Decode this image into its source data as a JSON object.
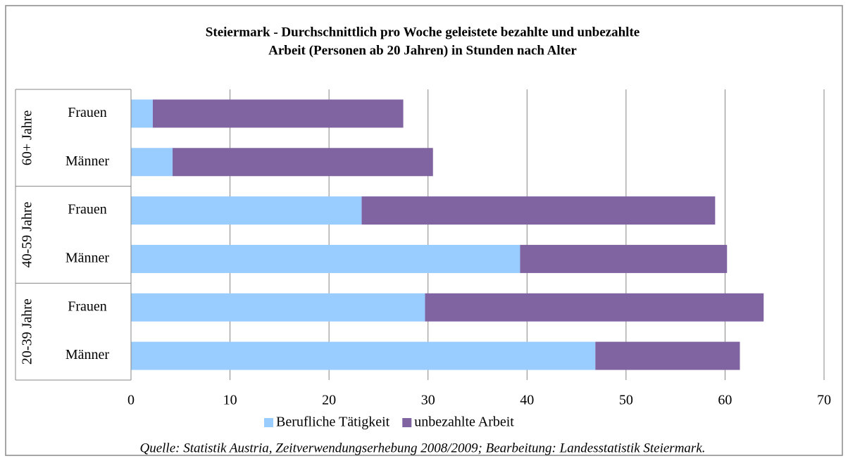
{
  "chart_data": {
    "type": "stacked_barh",
    "title": [
      "Steiermark - Durchschnittlich pro Woche geleistete bezahlte und unbezahlte",
      "Arbeit (Personen ab 20 Jahren) in Stunden nach Alter"
    ],
    "groups": [
      "60+ Jahre",
      "40-59 Jahre",
      "20-39 Jahre"
    ],
    "categories": [
      "Frauen",
      "Männer",
      "Frauen",
      "Männer",
      "Frauen",
      "Männer"
    ],
    "series": [
      {
        "name": "Berufliche Tätigkeit",
        "color": "#99ccff",
        "values": [
          2.2,
          4.2,
          23.3,
          39.3,
          29.7,
          46.9
        ]
      },
      {
        "name": "unbezahlte Arbeit",
        "color": "#8064a2",
        "values": [
          25.3,
          26.3,
          35.7,
          20.9,
          34.2,
          14.6
        ]
      }
    ],
    "xlim": [
      0,
      70
    ],
    "xticks": [
      0,
      10,
      20,
      30,
      40,
      50,
      60,
      70
    ],
    "grid": true,
    "legend": "bottom",
    "source": "Quelle: Statistik Austria, Zeitverwendungserhebung 2008/2009; Bearbeitung: Landesstatistik Steiermark."
  }
}
